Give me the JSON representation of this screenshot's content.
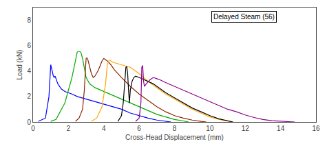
{
  "chart_data": {
    "type": "line",
    "title": "Delayed Steam (56)",
    "xlabel": "Cross-Head Displacement (mm)",
    "ylabel": "Load (kN)",
    "xlim": [
      0,
      16
    ],
    "ylim": [
      0,
      9
    ],
    "xticks": [
      0,
      2,
      4,
      6,
      8,
      10,
      12,
      14,
      16
    ],
    "yticks": [
      0,
      2,
      4,
      6,
      8
    ],
    "grid": false,
    "series": [
      {
        "color": "blue",
        "x": [
          0.3,
          0.7,
          0.9,
          1.0,
          1.05,
          1.1,
          1.15,
          1.2,
          1.25,
          1.3,
          1.35,
          1.4,
          1.5,
          1.6,
          1.8,
          2.0,
          2.2,
          2.5,
          3.0,
          3.5,
          4.0,
          4.5,
          5.0,
          5.5,
          6.0,
          6.5,
          7.0,
          7.5,
          7.8
        ],
        "values": [
          0.05,
          0.3,
          2.0,
          4.5,
          4.2,
          3.8,
          3.6,
          3.5,
          3.6,
          3.4,
          3.2,
          3.0,
          2.8,
          2.6,
          2.4,
          2.3,
          2.2,
          2.0,
          1.8,
          1.6,
          1.4,
          1.2,
          1.0,
          0.7,
          0.5,
          0.3,
          0.15,
          0.05,
          0.0
        ]
      },
      {
        "color": "#00aa00",
        "x": [
          1.0,
          1.3,
          1.8,
          2.2,
          2.5,
          2.6,
          2.7,
          2.8,
          3.0,
          3.2,
          3.5,
          4.0,
          4.5,
          5.0,
          5.5,
          6.0,
          6.5,
          7.0,
          7.5,
          8.0,
          8.5,
          8.8
        ],
        "values": [
          0.05,
          0.2,
          1.5,
          3.5,
          5.5,
          5.55,
          5.5,
          5.0,
          3.5,
          3.0,
          2.7,
          2.4,
          2.1,
          1.8,
          1.5,
          1.2,
          0.9,
          0.6,
          0.4,
          0.2,
          0.08,
          0.0
        ]
      },
      {
        "color": "#8B2500",
        "x": [
          2.4,
          2.6,
          2.8,
          2.9,
          3.0,
          3.05,
          3.1,
          3.2,
          3.3,
          3.4,
          3.5,
          3.7,
          3.9,
          4.0,
          4.1,
          4.2,
          4.4,
          4.6,
          5.0,
          5.5,
          6.0,
          6.5,
          7.0,
          7.5,
          8.0,
          8.5,
          9.0,
          9.5,
          9.8
        ],
        "values": [
          0.05,
          0.3,
          1.0,
          2.5,
          5.0,
          5.05,
          4.9,
          4.3,
          3.8,
          3.5,
          3.6,
          4.1,
          4.8,
          5.0,
          4.9,
          4.8,
          4.5,
          4.1,
          3.5,
          2.8,
          2.2,
          1.7,
          1.2,
          0.8,
          0.5,
          0.3,
          0.15,
          0.05,
          0.0
        ]
      },
      {
        "color": "orange",
        "x": [
          3.3,
          3.6,
          3.9,
          4.1,
          4.2,
          4.3,
          4.35,
          4.5,
          5.0,
          5.5,
          6.0,
          6.5,
          7.0,
          7.5,
          8.0,
          8.5,
          9.0,
          9.5,
          10.0,
          10.5,
          11.0,
          11.3
        ],
        "values": [
          0.05,
          0.3,
          1.2,
          3.0,
          4.5,
          4.85,
          4.85,
          4.7,
          4.5,
          4.3,
          3.8,
          3.2,
          2.7,
          2.2,
          1.8,
          1.4,
          1.0,
          0.7,
          0.4,
          0.2,
          0.08,
          0.0
        ]
      },
      {
        "color": "black",
        "x": [
          4.8,
          5.0,
          5.1,
          5.2,
          5.25,
          5.3,
          5.35,
          5.4,
          5.45,
          5.5,
          5.6,
          5.7,
          5.8,
          6.0,
          6.3,
          6.8,
          7.0,
          7.5,
          8.0,
          8.5,
          9.0,
          9.5,
          10.0,
          10.5,
          11.0,
          11.3
        ],
        "values": [
          0.05,
          0.5,
          1.5,
          3.5,
          4.3,
          4.35,
          3.8,
          2.5,
          1.5,
          2.5,
          3.2,
          3.5,
          3.6,
          3.5,
          3.3,
          3.0,
          2.8,
          2.3,
          1.9,
          1.5,
          1.1,
          0.8,
          0.5,
          0.25,
          0.08,
          0.0
        ]
      },
      {
        "color": "#8B008B",
        "x": [
          5.8,
          6.0,
          6.1,
          6.15,
          6.2,
          6.25,
          6.3,
          6.4,
          6.6,
          6.8,
          7.0,
          7.2,
          7.5,
          8.0,
          8.5,
          9.0,
          9.5,
          10.0,
          10.5,
          11.0,
          11.5,
          12.0,
          12.5,
          13.0,
          13.5,
          14.0,
          14.5,
          14.8
        ],
        "values": [
          0.05,
          0.3,
          1.5,
          4.3,
          4.45,
          3.2,
          2.8,
          3.0,
          3.3,
          3.5,
          3.4,
          3.3,
          3.1,
          2.8,
          2.5,
          2.2,
          1.9,
          1.6,
          1.3,
          1.0,
          0.8,
          0.55,
          0.35,
          0.2,
          0.1,
          0.05,
          0.02,
          0.0
        ]
      }
    ]
  }
}
